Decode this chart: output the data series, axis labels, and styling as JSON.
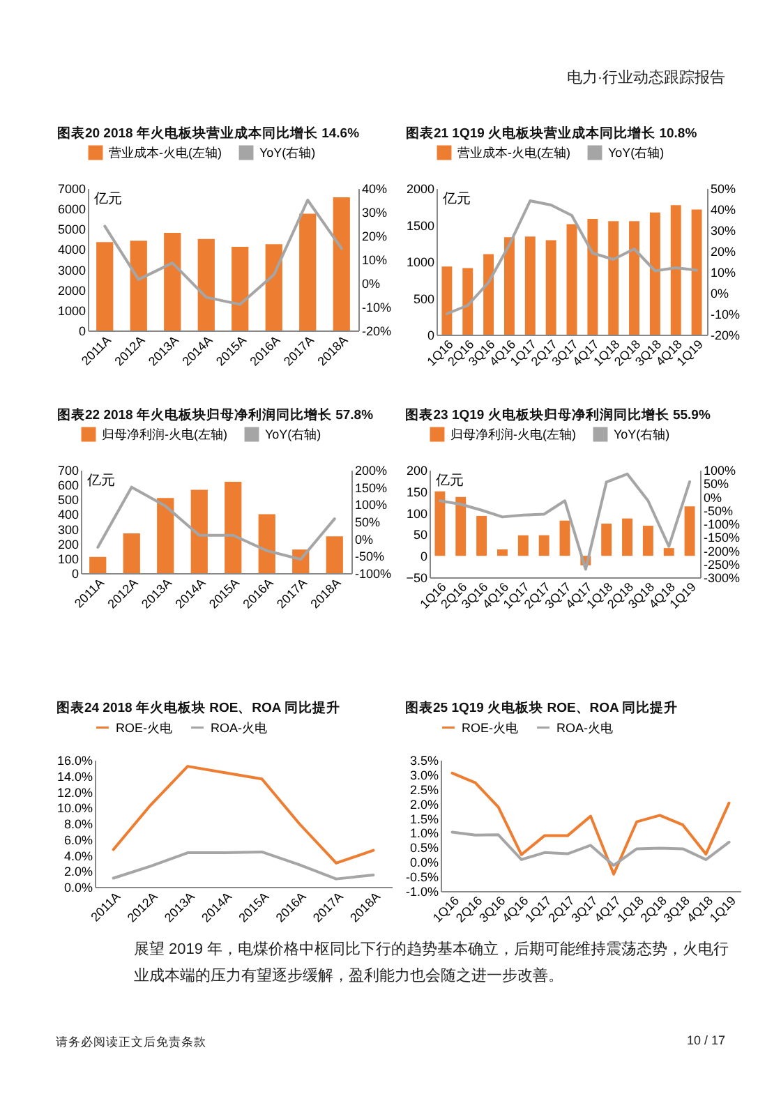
{
  "chart_data": [
    {
      "type": "bar",
      "title": "图表20    2018 年火电板块营业成本同比增长 14.6%",
      "ylabel": "亿元",
      "categories": [
        "2011A",
        "2012A",
        "2013A",
        "2014A",
        "2015A",
        "2016A",
        "2017A",
        "2018A"
      ],
      "series": [
        {
          "name": "营业成本-火电(左轴)",
          "type": "bar",
          "color": "#ed7d31",
          "values": [
            4350,
            4420,
            4800,
            4500,
            4120,
            4250,
            5750,
            6550
          ]
        },
        {
          "name": "YoY(右轴)",
          "type": "line",
          "axis": "y2",
          "color": "#a5a5a5",
          "values": [
            24,
            1.5,
            8.5,
            -6,
            -9,
            3.5,
            35,
            14.6
          ]
        }
      ],
      "ylim": [
        0,
        7000
      ],
      "yticks": [
        0,
        1000,
        2000,
        3000,
        4000,
        5000,
        6000,
        7000
      ],
      "y2lim": [
        -20,
        40
      ],
      "y2ticks": [
        {
          "value": -20,
          "label": "-20%"
        },
        {
          "value": -10,
          "label": "-10%"
        },
        {
          "value": 0,
          "label": "0%"
        },
        {
          "value": 10,
          "label": "10%"
        },
        {
          "value": 20,
          "label": "20%"
        },
        {
          "value": 30,
          "label": "30%"
        },
        {
          "value": 40,
          "label": "40%"
        }
      ],
      "legend": "top"
    },
    {
      "type": "bar",
      "title": "图表21    1Q19 火电板块营业成本同比增长 10.8%",
      "ylabel": "亿元",
      "categories": [
        "1Q16",
        "2Q16",
        "3Q16",
        "4Q16",
        "1Q17",
        "2Q17",
        "3Q17",
        "4Q17",
        "1Q18",
        "2Q18",
        "3Q18",
        "4Q18",
        "1Q19"
      ],
      "series": [
        {
          "name": "营业成本-火电(左轴)",
          "type": "bar",
          "color": "#ed7d31",
          "values": [
            930,
            910,
            1100,
            1330,
            1340,
            1290,
            1510,
            1580,
            1550,
            1550,
            1670,
            1770,
            1710
          ]
        },
        {
          "name": "YoY(右轴)",
          "type": "line",
          "axis": "y2",
          "color": "#a5a5a5",
          "values": [
            -10,
            -6,
            5,
            23,
            44,
            42,
            37,
            19,
            16,
            21,
            10.5,
            12,
            10.8
          ]
        }
      ],
      "ylim": [
        0,
        2000
      ],
      "yticks": [
        0,
        500,
        1000,
        1500,
        2000
      ],
      "y2lim": [
        -20,
        50
      ],
      "y2ticks": [
        {
          "value": -20,
          "label": "-20%"
        },
        {
          "value": -10,
          "label": "-10%"
        },
        {
          "value": 0,
          "label": "0%"
        },
        {
          "value": 10,
          "label": "10%"
        },
        {
          "value": 20,
          "label": "20%"
        },
        {
          "value": 30,
          "label": "30%"
        },
        {
          "value": 40,
          "label": "40%"
        },
        {
          "value": 50,
          "label": "50%"
        }
      ],
      "legend": "top"
    },
    {
      "type": "bar",
      "title": "图表22    2018 年火电板块归母净利润同比增长 57.8%",
      "ylabel": "亿元",
      "categories": [
        "2011A",
        "2012A",
        "2013A",
        "2014A",
        "2015A",
        "2016A",
        "2017A",
        "2018A"
      ],
      "series": [
        {
          "name": "归母净利润-火电(左轴)",
          "type": "bar",
          "color": "#ed7d31",
          "values": [
            110,
            270,
            510,
            565,
            620,
            400,
            160,
            250
          ]
        },
        {
          "name": "YoY(右轴)",
          "type": "line",
          "axis": "y2",
          "color": "#a5a5a5",
          "values": [
            -25,
            150,
            95,
            10,
            10,
            -35,
            -60,
            57.8
          ]
        }
      ],
      "ylim": [
        0,
        700
      ],
      "yticks": [
        0,
        100,
        200,
        300,
        400,
        500,
        600,
        700
      ],
      "y2lim": [
        -100,
        200
      ],
      "y2ticks": [
        {
          "value": -100,
          "label": "-100%"
        },
        {
          "value": -50,
          "label": "-50%"
        },
        {
          "value": 0,
          "label": "0%"
        },
        {
          "value": 50,
          "label": "50%"
        },
        {
          "value": 100,
          "label": "100%"
        },
        {
          "value": 150,
          "label": "150%"
        },
        {
          "value": 200,
          "label": "200%"
        }
      ],
      "legend": "top"
    },
    {
      "type": "bar",
      "title": "图表23    1Q19 火电板块归母净利润同比增长 55.9%",
      "ylabel": "亿元",
      "categories": [
        "1Q16",
        "2Q16",
        "3Q16",
        "4Q16",
        "1Q17",
        "2Q17",
        "3Q17",
        "4Q17",
        "1Q18",
        "2Q18",
        "3Q18",
        "4Q18",
        "1Q19"
      ],
      "series": [
        {
          "name": "归母净利润-火电(左轴)",
          "type": "bar",
          "color": "#ed7d31",
          "values": [
            150,
            137,
            93,
            15,
            48,
            48,
            82,
            -22,
            75,
            87,
            70,
            18,
            115
          ]
        },
        {
          "name": "YoY(右轴)",
          "type": "line",
          "axis": "y2",
          "color": "#a5a5a5",
          "values": [
            -15,
            -28,
            -50,
            -75,
            -68,
            -65,
            -15,
            -270,
            55,
            85,
            -15,
            -185,
            55.9
          ]
        }
      ],
      "ylim": [
        -50,
        200
      ],
      "yticks": [
        -50,
        0,
        50,
        100,
        150,
        200
      ],
      "y2lim": [
        -300,
        100
      ],
      "y2ticks": [
        {
          "value": -300,
          "label": "-300%"
        },
        {
          "value": -250,
          "label": "-250%"
        },
        {
          "value": -200,
          "label": "-200%"
        },
        {
          "value": -150,
          "label": "-150%"
        },
        {
          "value": -100,
          "label": "-100%"
        },
        {
          "value": -50,
          "label": "-50%"
        },
        {
          "value": 0,
          "label": "0%"
        },
        {
          "value": 50,
          "label": "50%"
        },
        {
          "value": 100,
          "label": "100%"
        }
      ],
      "legend": "top"
    },
    {
      "type": "line",
      "title": "图表24    2018 年火电板块 ROE、ROA 同比提升",
      "categories": [
        "2011A",
        "2012A",
        "2013A",
        "2014A",
        "2015A",
        "2016A",
        "2017A",
        "2018A"
      ],
      "series": [
        {
          "name": "ROE-火电",
          "color": "#ed7d31",
          "values": [
            4.7,
            10.3,
            15.2,
            14.4,
            13.6,
            8,
            3,
            4.6
          ]
        },
        {
          "name": "ROA-火电",
          "color": "#a5a5a5",
          "values": [
            1.1,
            2.6,
            4.3,
            4.3,
            4.4,
            2.8,
            1.0,
            1.5
          ]
        }
      ],
      "ylim": [
        0,
        16
      ],
      "yticks": [
        {
          "value": 0,
          "label": "0.0%"
        },
        {
          "value": 2,
          "label": "2.0%"
        },
        {
          "value": 4,
          "label": "4.0%"
        },
        {
          "value": 6,
          "label": "6.0%"
        },
        {
          "value": 8,
          "label": "8.0%"
        },
        {
          "value": 10,
          "label": "10.0%"
        },
        {
          "value": 12,
          "label": "12.0%"
        },
        {
          "value": 14,
          "label": "14.0%"
        },
        {
          "value": 16,
          "label": "16.0%"
        }
      ],
      "legend": "top"
    },
    {
      "type": "line",
      "title": "图表25    1Q19 火电板块 ROE、ROA 同比提升",
      "categories": [
        "1Q16",
        "2Q16",
        "3Q16",
        "4Q16",
        "1Q17",
        "2Q17",
        "3Q17",
        "4Q17",
        "1Q18",
        "2Q18",
        "3Q18",
        "4Q18",
        "1Q19"
      ],
      "series": [
        {
          "name": "ROE-火电",
          "color": "#ed7d31",
          "values": [
            3.05,
            2.72,
            1.88,
            0.25,
            0.9,
            0.9,
            1.57,
            -0.42,
            1.38,
            1.6,
            1.27,
            0.27,
            2.02
          ]
        },
        {
          "name": "ROA-火电",
          "color": "#a5a5a5",
          "values": [
            1.02,
            0.92,
            0.93,
            0.08,
            0.32,
            0.28,
            0.57,
            -0.12,
            0.45,
            0.47,
            0.45,
            0.08,
            0.68
          ]
        }
      ],
      "ylim": [
        -1,
        3.5
      ],
      "yticks": [
        {
          "value": -1,
          "label": "-1.0%"
        },
        {
          "value": -0.5,
          "label": "-0.5%"
        },
        {
          "value": 0,
          "label": "0.0%"
        },
        {
          "value": 0.5,
          "label": "0.5%"
        },
        {
          "value": 1,
          "label": "1.0%"
        },
        {
          "value": 1.5,
          "label": "1.5%"
        },
        {
          "value": 2,
          "label": "2.0%"
        },
        {
          "value": 2.5,
          "label": "2.5%"
        },
        {
          "value": 3,
          "label": "3.0%"
        },
        {
          "value": 3.5,
          "label": "3.5%"
        }
      ],
      "legend": "top"
    },
    {
      "type": "other",
      "annotations": [
        "电力·行业动态跟踪报告",
        "展望 2019 年，电煤价格中枢同比下行的趋势基本确立，后期可能维持震荡态势，火电行业成本端的压力有望逐步缓解，盈利能力也会随之进一步改善。",
        "请务必阅读正文后免责条款",
        "10 / 17"
      ]
    }
  ]
}
